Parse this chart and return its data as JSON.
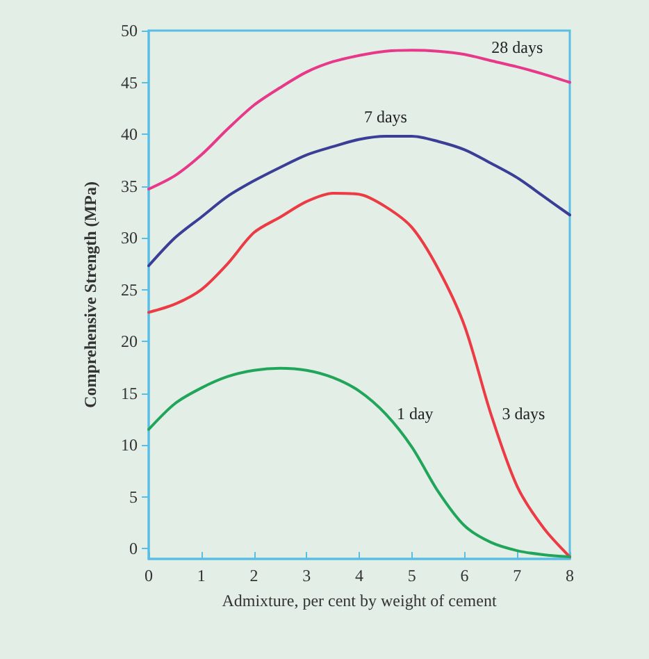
{
  "chart_data": {
    "type": "line",
    "xlabel": "Admixture, per cent by weight of cement",
    "ylabel": "Comprehensive Strength (MPa)",
    "x": [
      0,
      0.5,
      1,
      1.5,
      2,
      2.5,
      3,
      3.5,
      4,
      4.5,
      5,
      5.5,
      6,
      6.5,
      7,
      7.5,
      8
    ],
    "series": [
      {
        "name": "28 days",
        "color": "#e8388a",
        "values": [
          34.7,
          36,
          38,
          40.5,
          42.8,
          44.5,
          46,
          47,
          47.6,
          48,
          48.1,
          48,
          47.7,
          47.1,
          46.5,
          45.8,
          45
        ]
      },
      {
        "name": "7 days",
        "color": "#3a3e96",
        "values": [
          27.3,
          30,
          32,
          34,
          35.5,
          36.8,
          38,
          38.8,
          39.5,
          39.8,
          39.8,
          39.3,
          38.5,
          37.2,
          35.8,
          34,
          32.2
        ]
      },
      {
        "name": "3 days",
        "color": "#ec3b45",
        "values": [
          22.8,
          23.6,
          25,
          27.5,
          30.5,
          32,
          33.5,
          34.3,
          34.2,
          33,
          31,
          27,
          21.5,
          13,
          6,
          2,
          -0.8
        ]
      },
      {
        "name": "1 day",
        "color": "#21a55a",
        "values": [
          11.5,
          14,
          15.5,
          16.6,
          17.2,
          17.4,
          17.2,
          16.5,
          15.2,
          13,
          9.8,
          5.5,
          2.2,
          0.6,
          -0.2,
          -0.6,
          -0.8
        ]
      }
    ],
    "xlim": [
      0,
      8
    ],
    "xticks": [
      0,
      1,
      2,
      3,
      4,
      5,
      6,
      7,
      8
    ],
    "ylim": [
      -1,
      50
    ],
    "yticks": [
      0,
      5,
      10,
      15,
      20,
      25,
      30,
      35,
      40,
      45,
      50
    ],
    "grid": false,
    "legend": false,
    "marker": "none",
    "line_style": "solid"
  }
}
